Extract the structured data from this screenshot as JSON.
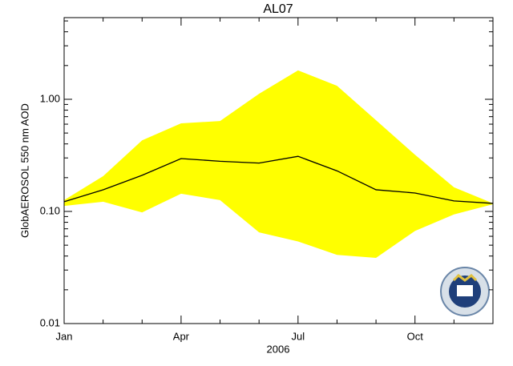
{
  "chart_data": {
    "type": "line",
    "title": "AL07",
    "ylabel": "GlobAEROSOL 550 nm AOD",
    "xlabel": "2006",
    "categories": [
      "Jan",
      null,
      null,
      "Apr",
      null,
      null,
      "Jul",
      null,
      null,
      "Oct",
      null,
      null
    ],
    "series": [
      {
        "color": "#000000",
        "values": [
          0.122,
          0.156,
          0.21,
          0.296,
          0.28,
          0.27,
          0.31,
          0.23,
          0.156,
          0.146,
          0.124,
          0.118
        ]
      }
    ],
    "band": {
      "color": "#ffff00",
      "upper": [
        0.126,
        0.206,
        0.43,
        0.61,
        0.64,
        1.12,
        1.81,
        1.32,
        0.65,
        0.32,
        0.164,
        0.118
      ],
      "lower": [
        0.112,
        0.122,
        0.098,
        0.144,
        0.126,
        0.065,
        0.054,
        0.041,
        0.0385,
        0.067,
        0.094,
        0.116
      ]
    },
    "ylim": [
      0.01,
      5.35
    ],
    "log_y": true,
    "yticks": [
      0.01,
      {
        "value": 0.1,
        "label": "0.10"
      },
      {
        "value": 1,
        "label": "1.00"
      }
    ]
  }
}
